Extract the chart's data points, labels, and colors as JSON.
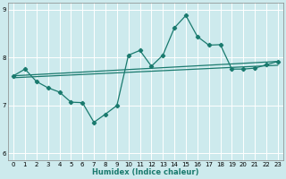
{
  "xlabel": "Humidex (Indice chaleur)",
  "xlim": [
    -0.5,
    23.5
  ],
  "ylim": [
    5.85,
    9.15
  ],
  "yticks": [
    6,
    7,
    8,
    9
  ],
  "xticks": [
    0,
    1,
    2,
    3,
    4,
    5,
    6,
    7,
    8,
    9,
    10,
    11,
    12,
    13,
    14,
    15,
    16,
    17,
    18,
    19,
    20,
    21,
    22,
    23
  ],
  "bg_color": "#cdeaed",
  "grid_color": "#ffffff",
  "line_color": "#1a7a6e",
  "line1_x": [
    0,
    1,
    2,
    3,
    4,
    5,
    6,
    7,
    8,
    9,
    10,
    11,
    12,
    13,
    14,
    15,
    16,
    17,
    18,
    19,
    20,
    21,
    22,
    23
  ],
  "line1_y": [
    7.62,
    7.76,
    7.5,
    7.37,
    7.28,
    7.07,
    7.06,
    6.65,
    6.82,
    7.0,
    8.05,
    8.15,
    7.82,
    8.05,
    8.62,
    8.88,
    8.44,
    8.26,
    8.27,
    7.76,
    7.76,
    7.78,
    7.85,
    7.92
  ],
  "line2_x": [
    0,
    23
  ],
  "line2_y": [
    7.62,
    7.92
  ],
  "line3_x": [
    0,
    23
  ],
  "line3_y": [
    7.58,
    7.84
  ],
  "lw_jagged": 0.9,
  "lw_trend": 0.9,
  "marker_size": 2.2
}
